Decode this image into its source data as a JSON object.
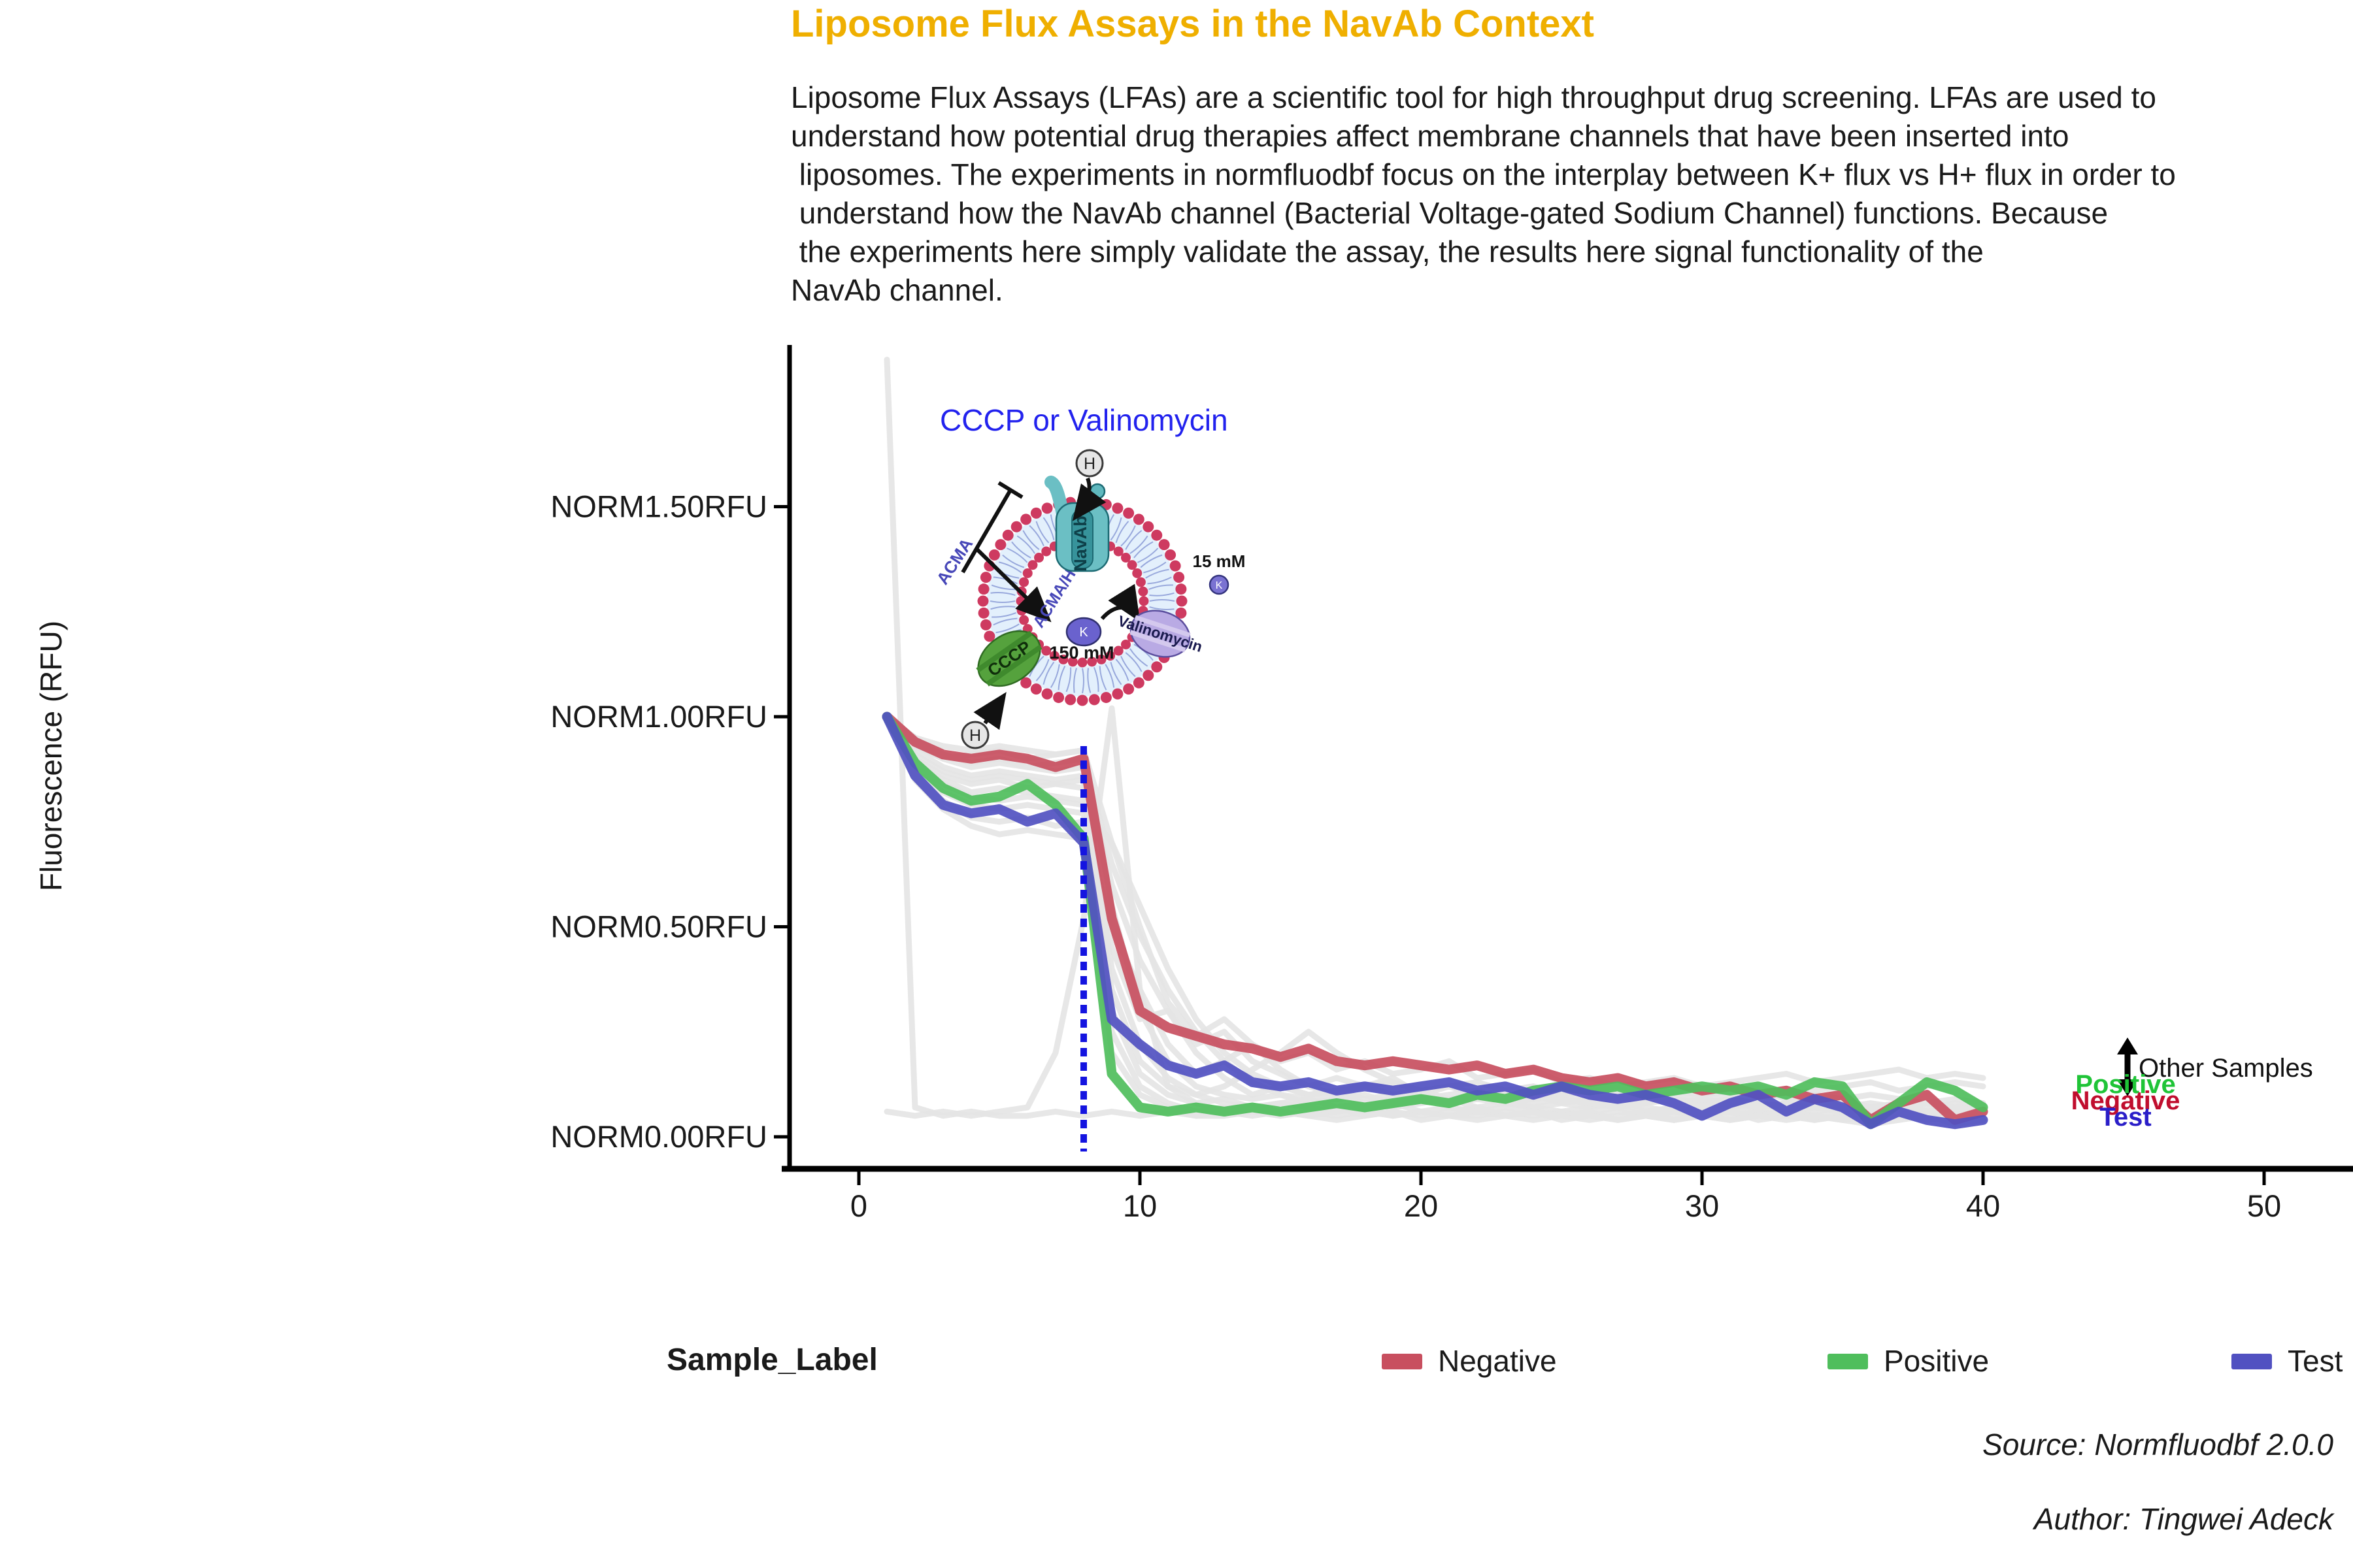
{
  "header": {
    "title": "Liposome Flux Assays in the NavAb Context",
    "title_color": "#EFAF00",
    "paragraph": "Liposome Flux Assays (LFAs) are a scientific tool for high throughput drug screening. LFAs are used to\nunderstand how potential drug therapies affect membrane channels that have been inserted into\n liposomes. The experiments in normfluodbf focus on the interplay between K+ flux vs H+ flux in order to\n understand how the NavAb channel (Bacterial Voltage-gated Sodium Channel) functions. Because\n the experiments here simply validate the assay, the results here signal functionality of the\nNavAb channel."
  },
  "chart_data": {
    "type": "line",
    "title": "",
    "xlabel": "",
    "ylabel": "Fluorescence (RFU)",
    "xlim": [
      -2.5,
      53
    ],
    "ylim": [
      -0.075,
      1.88
    ],
    "grid": false,
    "legend_position": "bottom",
    "x_ticks": [
      {
        "label": "0",
        "value": 0
      },
      {
        "label": "10",
        "value": 10
      },
      {
        "label": "20",
        "value": 20
      },
      {
        "label": "30",
        "value": 30
      },
      {
        "label": "40",
        "value": 40
      },
      {
        "label": "50",
        "value": 50
      }
    ],
    "y_ticks": [
      {
        "label": "NORM0.00RFU",
        "value": 0
      },
      {
        "label": "NORM0.50RFU",
        "value": 0.5
      },
      {
        "label": "NORM1.00RFU",
        "value": 1
      },
      {
        "label": "NORM1.50RFU",
        "value": 1.5
      }
    ],
    "x": [
      1,
      2,
      3,
      4,
      5,
      6,
      7,
      8,
      9,
      10,
      11,
      12,
      13,
      14,
      15,
      16,
      17,
      18,
      19,
      20,
      21,
      22,
      23,
      24,
      25,
      26,
      27,
      28,
      29,
      30,
      31,
      32,
      33,
      34,
      35,
      36,
      37,
      38,
      39,
      40
    ],
    "series": [
      {
        "name": "Negative",
        "color": "#C84F5F",
        "values": [
          1.0,
          0.94,
          0.91,
          0.9,
          0.91,
          0.9,
          0.88,
          0.9,
          0.52,
          0.3,
          0.26,
          0.24,
          0.22,
          0.21,
          0.19,
          0.21,
          0.18,
          0.17,
          0.18,
          0.17,
          0.16,
          0.17,
          0.15,
          0.16,
          0.14,
          0.13,
          0.14,
          0.12,
          0.13,
          0.11,
          0.12,
          0.1,
          0.11,
          0.09,
          0.1,
          0.04,
          0.08,
          0.1,
          0.04,
          0.06
        ]
      },
      {
        "name": "Positive",
        "color": "#4FBE5C",
        "values": [
          1.0,
          0.89,
          0.83,
          0.8,
          0.81,
          0.84,
          0.79,
          0.71,
          0.15,
          0.07,
          0.06,
          0.07,
          0.06,
          0.07,
          0.06,
          0.07,
          0.08,
          0.07,
          0.08,
          0.09,
          0.08,
          0.1,
          0.09,
          0.11,
          0.12,
          0.11,
          0.12,
          0.1,
          0.11,
          0.12,
          0.11,
          0.12,
          0.1,
          0.13,
          0.12,
          0.03,
          0.08,
          0.13,
          0.11,
          0.07
        ]
      },
      {
        "name": "Test",
        "color": "#5151C1",
        "values": [
          1.0,
          0.86,
          0.79,
          0.77,
          0.78,
          0.75,
          0.77,
          0.7,
          0.28,
          0.22,
          0.17,
          0.15,
          0.17,
          0.13,
          0.12,
          0.13,
          0.11,
          0.12,
          0.11,
          0.12,
          0.13,
          0.11,
          0.12,
          0.1,
          0.12,
          0.1,
          0.09,
          0.1,
          0.08,
          0.05,
          0.08,
          0.1,
          0.06,
          0.09,
          0.07,
          0.03,
          0.06,
          0.04,
          0.03,
          0.04
        ]
      }
    ],
    "other_samples_color": "#E4E4E4",
    "other_samples": [
      [
        1.85,
        0.07,
        0.05,
        0.06,
        0.05,
        0.05,
        0.06,
        0.05,
        0.06,
        0.05,
        0.06,
        0.05,
        0.05,
        0.06,
        0.05,
        0.06,
        0.05,
        0.06,
        0.05,
        0.06,
        0.05,
        0.05,
        0.06,
        0.05,
        0.06,
        0.05,
        0.06,
        0.05,
        0.05,
        0.06,
        0.05,
        0.06,
        0.05,
        0.05,
        0.06,
        0.05,
        0.06,
        0.05,
        0.05,
        0.06
      ],
      [
        0.06,
        0.05,
        0.06,
        0.05,
        0.06,
        0.07,
        0.2,
        0.52,
        1.02,
        0.35,
        0.12,
        0.08,
        0.06,
        0.07,
        0.06,
        0.05,
        0.06,
        0.07,
        0.05,
        0.06,
        0.05,
        0.06,
        0.05,
        0.04,
        0.05,
        0.06,
        0.04,
        0.05,
        0.04,
        0.05,
        0.06,
        0.04,
        0.05,
        0.04,
        0.05,
        0.04,
        0.05,
        0.04,
        0.05,
        0.04
      ],
      [
        1.0,
        0.95,
        0.93,
        0.92,
        0.93,
        0.92,
        0.91,
        0.92,
        0.55,
        0.3,
        0.18,
        0.12,
        0.1,
        0.09,
        0.1,
        0.08,
        0.09,
        0.1,
        0.08,
        0.09,
        0.08,
        0.09,
        0.08,
        0.07,
        0.08,
        0.07,
        0.08,
        0.07,
        0.06,
        0.07,
        0.08,
        0.07,
        0.06,
        0.07,
        0.06,
        0.07,
        0.06,
        0.05,
        0.06,
        0.05
      ],
      [
        1.0,
        0.93,
        0.9,
        0.88,
        0.89,
        0.88,
        0.87,
        0.88,
        0.6,
        0.42,
        0.3,
        0.2,
        0.14,
        0.1,
        0.12,
        0.1,
        0.11,
        0.09,
        0.1,
        0.11,
        0.09,
        0.1,
        0.08,
        0.09,
        0.1,
        0.08,
        0.09,
        0.08,
        0.09,
        0.08,
        0.07,
        0.08,
        0.07,
        0.08,
        0.07,
        0.06,
        0.07,
        0.06,
        0.07,
        0.06
      ],
      [
        1.0,
        0.9,
        0.86,
        0.84,
        0.85,
        0.83,
        0.84,
        0.85,
        0.3,
        0.15,
        0.1,
        0.08,
        0.09,
        0.07,
        0.08,
        0.09,
        0.07,
        0.08,
        0.07,
        0.08,
        0.09,
        0.07,
        0.08,
        0.07,
        0.06,
        0.07,
        0.08,
        0.06,
        0.07,
        0.06,
        0.07,
        0.06,
        0.05,
        0.06,
        0.07,
        0.05,
        0.06,
        0.05,
        0.06,
        0.05
      ],
      [
        1.0,
        0.89,
        0.85,
        0.82,
        0.83,
        0.82,
        0.81,
        0.8,
        0.45,
        0.28,
        0.3,
        0.22,
        0.25,
        0.18,
        0.15,
        0.12,
        0.14,
        0.12,
        0.13,
        0.11,
        0.12,
        0.13,
        0.11,
        0.12,
        0.1,
        0.11,
        0.12,
        0.1,
        0.11,
        0.1,
        0.11,
        0.12,
        0.1,
        0.11,
        0.12,
        0.13,
        0.11,
        0.12,
        0.13,
        0.12
      ],
      [
        1.0,
        0.87,
        0.82,
        0.79,
        0.78,
        0.79,
        0.78,
        0.77,
        0.25,
        0.12,
        0.08,
        0.06,
        0.07,
        0.06,
        0.05,
        0.06,
        0.07,
        0.05,
        0.06,
        0.05,
        0.06,
        0.07,
        0.05,
        0.06,
        0.05,
        0.04,
        0.05,
        0.06,
        0.04,
        0.05,
        0.04,
        0.05,
        0.06,
        0.04,
        0.05,
        0.04,
        0.05,
        0.04,
        0.05,
        0.04
      ],
      [
        1.0,
        0.86,
        0.8,
        0.76,
        0.75,
        0.76,
        0.74,
        0.75,
        0.5,
        0.35,
        0.22,
        0.15,
        0.18,
        0.22,
        0.16,
        0.12,
        0.1,
        0.12,
        0.14,
        0.1,
        0.12,
        0.1,
        0.09,
        0.1,
        0.08,
        0.09,
        0.1,
        0.08,
        0.09,
        0.08,
        0.09,
        0.08,
        0.07,
        0.08,
        0.09,
        0.07,
        0.08,
        0.07,
        0.08,
        0.07
      ],
      [
        1.0,
        0.88,
        0.84,
        0.81,
        0.8,
        0.81,
        0.8,
        0.79,
        0.7,
        0.55,
        0.4,
        0.28,
        0.2,
        0.15,
        0.12,
        0.1,
        0.11,
        0.12,
        0.1,
        0.09,
        0.1,
        0.11,
        0.09,
        0.1,
        0.09,
        0.08,
        0.09,
        0.1,
        0.08,
        0.09,
        0.08,
        0.07,
        0.08,
        0.09,
        0.07,
        0.08,
        0.07,
        0.08,
        0.07,
        0.08
      ],
      [
        1.0,
        0.94,
        0.91,
        0.89,
        0.9,
        0.88,
        0.89,
        0.9,
        0.65,
        0.48,
        0.35,
        0.25,
        0.18,
        0.13,
        0.1,
        0.09,
        0.1,
        0.08,
        0.09,
        0.1,
        0.08,
        0.09,
        0.1,
        0.08,
        0.09,
        0.08,
        0.07,
        0.08,
        0.09,
        0.07,
        0.08,
        0.07,
        0.08,
        0.07,
        0.06,
        0.07,
        0.08,
        0.06,
        0.07,
        0.06
      ],
      [
        1.0,
        0.91,
        0.87,
        0.85,
        0.86,
        0.85,
        0.84,
        0.83,
        0.35,
        0.18,
        0.12,
        0.1,
        0.12,
        0.16,
        0.2,
        0.25,
        0.2,
        0.16,
        0.13,
        0.11,
        0.12,
        0.1,
        0.11,
        0.12,
        0.1,
        0.11,
        0.1,
        0.09,
        0.1,
        0.09,
        0.1,
        0.11,
        0.09,
        0.1,
        0.09,
        0.1,
        0.09,
        0.08,
        0.09,
        0.08
      ],
      [
        1.0,
        0.92,
        0.88,
        0.86,
        0.87,
        0.86,
        0.85,
        0.86,
        0.4,
        0.22,
        0.14,
        0.1,
        0.08,
        0.07,
        0.08,
        0.07,
        0.06,
        0.07,
        0.08,
        0.06,
        0.07,
        0.06,
        0.07,
        0.06,
        0.05,
        0.06,
        0.07,
        0.05,
        0.06,
        0.05,
        0.06,
        0.05,
        0.06,
        0.05,
        0.04,
        0.05,
        0.06,
        0.04,
        0.05,
        0.04
      ],
      [
        1.0,
        0.85,
        0.78,
        0.74,
        0.72,
        0.73,
        0.72,
        0.71,
        0.2,
        0.1,
        0.07,
        0.05,
        0.06,
        0.05,
        0.06,
        0.05,
        0.04,
        0.05,
        0.06,
        0.04,
        0.05,
        0.04,
        0.05,
        0.06,
        0.04,
        0.05,
        0.04,
        0.05,
        0.04,
        0.05,
        0.04,
        0.05,
        0.04,
        0.05,
        0.04,
        0.03,
        0.04,
        0.05,
        0.03,
        0.04
      ],
      [
        1.0,
        0.93,
        0.9,
        0.91,
        0.92,
        0.9,
        0.91,
        0.92,
        0.7,
        0.5,
        0.32,
        0.24,
        0.28,
        0.22,
        0.18,
        0.2,
        0.16,
        0.18,
        0.15,
        0.16,
        0.18,
        0.14,
        0.15,
        0.16,
        0.13,
        0.14,
        0.12,
        0.13,
        0.14,
        0.12,
        0.13,
        0.14,
        0.15,
        0.13,
        0.14,
        0.15,
        0.16,
        0.14,
        0.15,
        0.14
      ]
    ],
    "event_line": {
      "x": 8,
      "color": "#1414E0",
      "style": "dotted"
    }
  },
  "annotations": {
    "diagram_title": "CCCP or Valinomycin",
    "diagram_title_color": "#2222EE",
    "other_samples_label": "Other Samples",
    "positive_label": "Positive",
    "negative_label": "Negative",
    "test_label": "Test",
    "positive_color": "#1FC437",
    "negative_color": "#C00E2E",
    "test_color": "#2A1EC8"
  },
  "diagram": {
    "navab": "NavAb",
    "cccp": "CCCP",
    "valinomycin": "Valinomycin",
    "acma": "ACMA",
    "acma_h": "ACMA/H+",
    "h_ion": "H",
    "k_ion": "K",
    "outside_concentration": "15 mM",
    "inside_concentration": "150 mM"
  },
  "legend": {
    "title": "Sample_Label",
    "items": [
      {
        "label": "Negative",
        "color": "#C84F5F"
      },
      {
        "label": "Positive",
        "color": "#4FBE5C"
      },
      {
        "label": "Test",
        "color": "#5151C1"
      }
    ]
  },
  "footer": {
    "source": "Source: Normfluodbf 2.0.0",
    "author": "Author: Tingwei Adeck"
  }
}
